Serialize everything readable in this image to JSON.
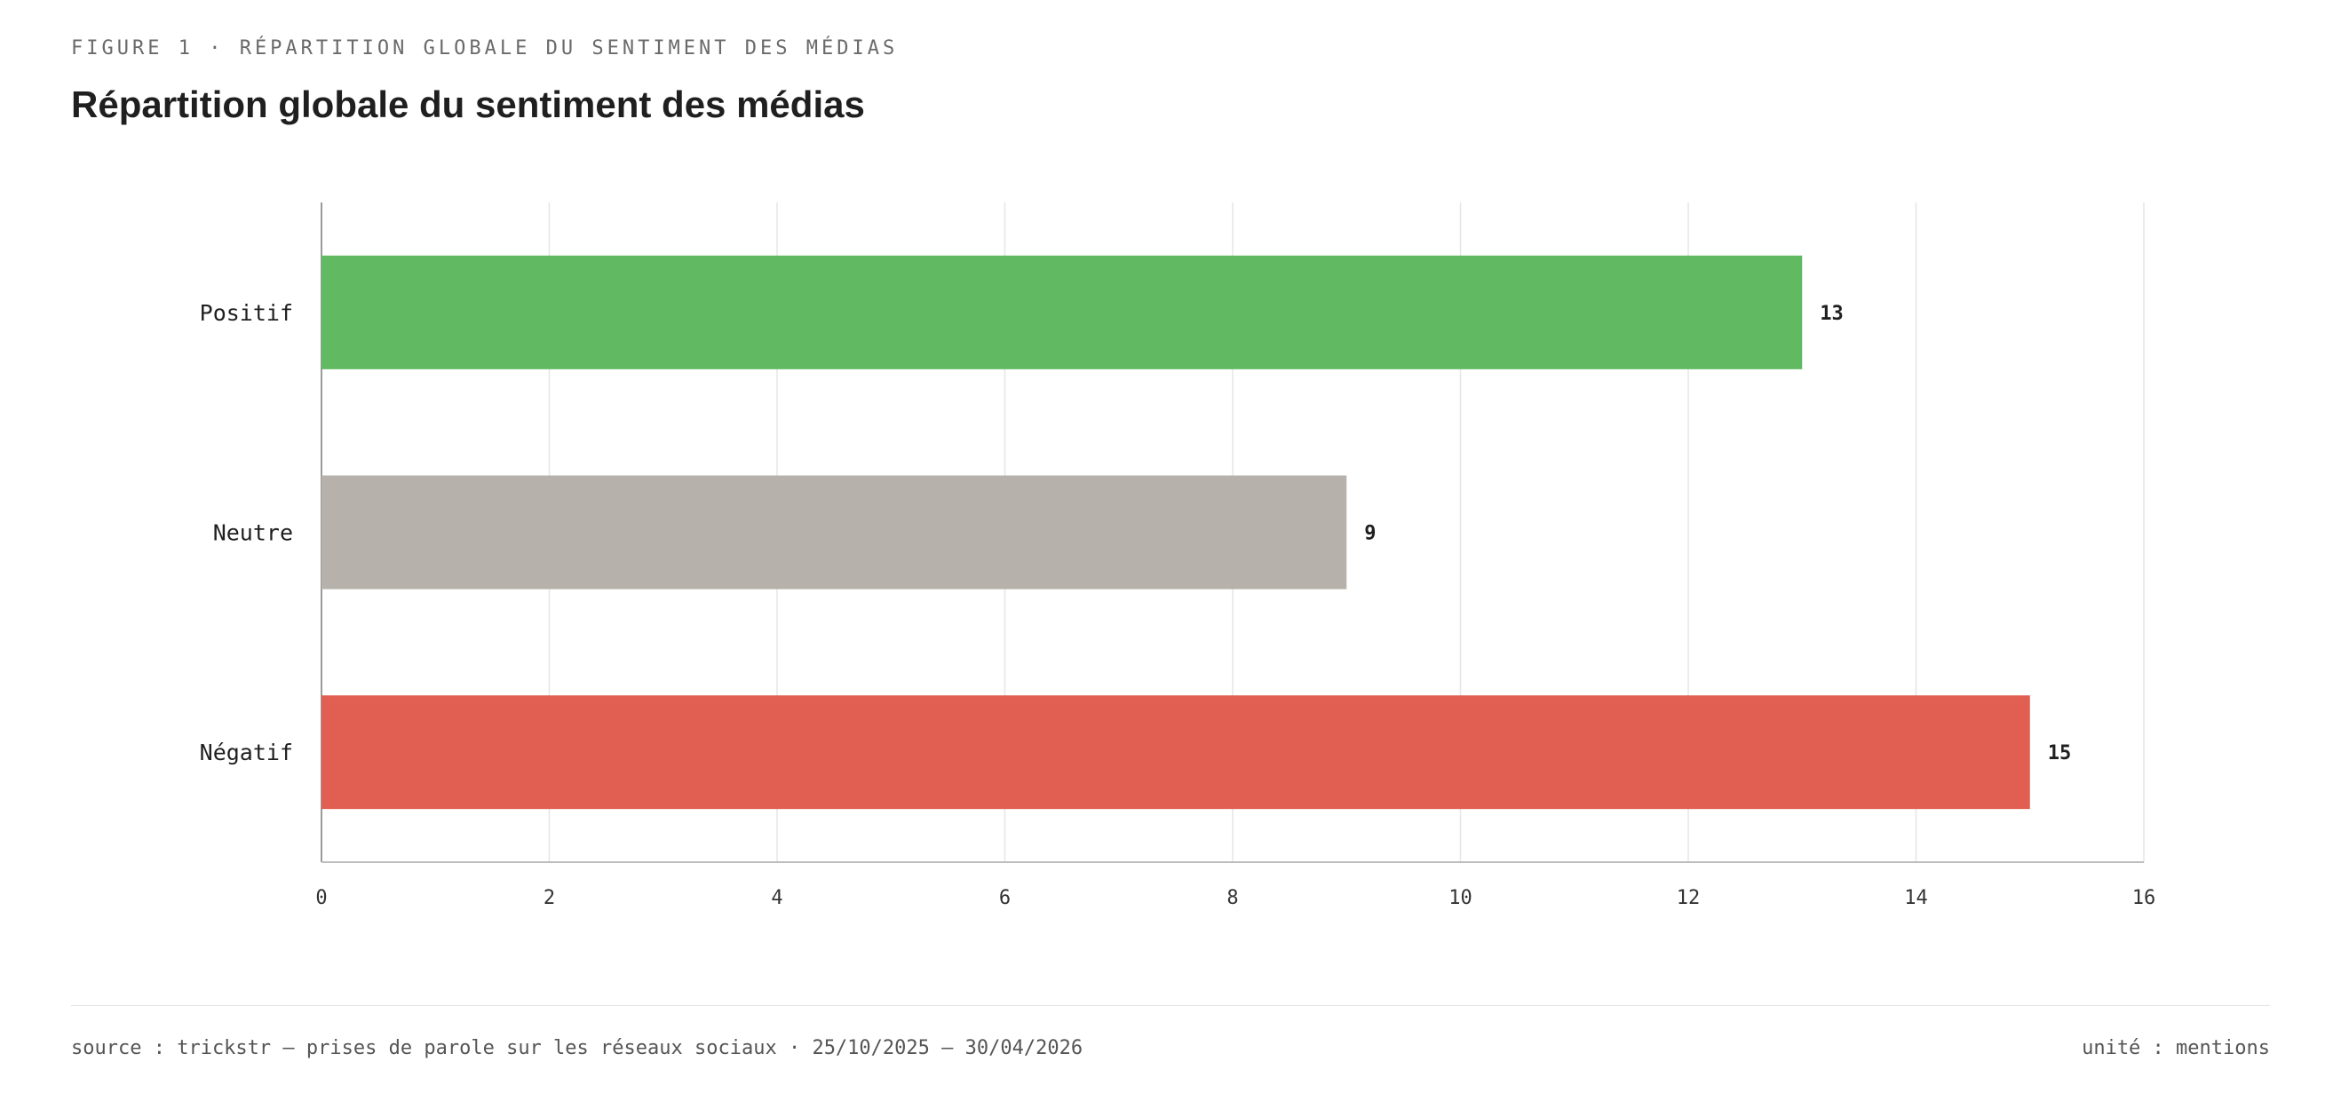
{
  "header": {
    "kicker": "FIGURE 1 · RÉPARTITION GLOBALE DU SENTIMENT DES MÉDIAS",
    "title": "Répartition globale du sentiment des médias"
  },
  "footer": {
    "source": "source : trickstr — prises de parole sur les réseaux sociaux · 25/10/2025 – 30/04/2026",
    "unit": "unité : mentions"
  },
  "chart_data": {
    "type": "bar",
    "orientation": "horizontal",
    "categories": [
      "Positif",
      "Neutre",
      "Négatif"
    ],
    "values": [
      13,
      9,
      15
    ],
    "data_labels": [
      "13",
      "9",
      "15"
    ],
    "colors": [
      "#61b961",
      "#b6b1aa",
      "#e05e52"
    ],
    "xlim": [
      0,
      16
    ],
    "x_ticks": [
      0,
      2,
      4,
      6,
      8,
      10,
      12,
      14,
      16
    ],
    "grid": true,
    "legend": "none"
  }
}
